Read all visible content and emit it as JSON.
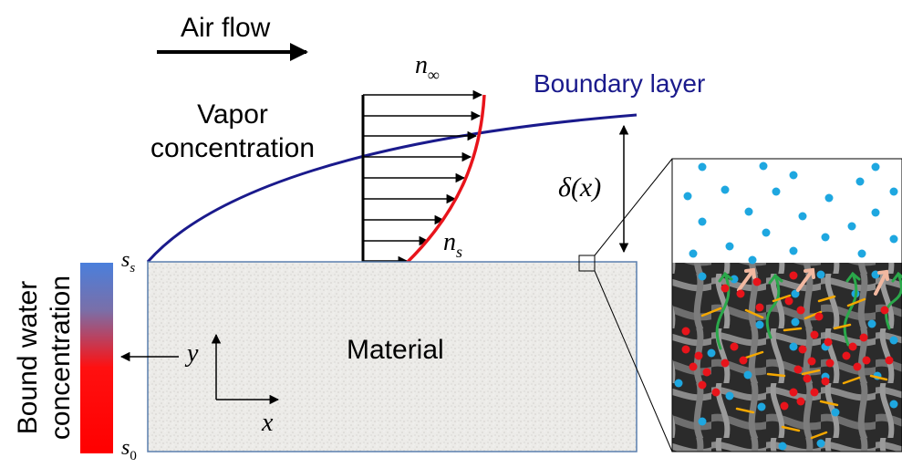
{
  "labels": {
    "air_flow": "Air flow",
    "vapor_line1": "Vapor",
    "vapor_line2": "concentration",
    "boundary_layer": "Boundary layer",
    "n_inf_base": "n",
    "n_inf_sub": "∞",
    "n_s_base": "n",
    "n_s_sub": "s",
    "delta": "δ(x)",
    "material": "Material",
    "y_axis": "y",
    "x_axis": "x",
    "bound_water_line1": "Bound water",
    "bound_water_line2": "concentration",
    "ss_base": "s",
    "ss_sub": "s",
    "s0_base": "s",
    "s0_sub": "0"
  },
  "colors": {
    "boundary_curve": "#1a1a8c",
    "profile_curve": "#e8141b",
    "vapor_dot": "#1ea7e0",
    "bound_dot": "#e8141b",
    "exchange_arrow": "#f5a800",
    "evaporation_arrow": "#2aa84a",
    "release_arrow": "#f2b8a0",
    "gradient_top": "#4a7fdc",
    "gradient_bottom": "#ff1010",
    "material_border": "#5a7fae"
  },
  "icons": [
    "air-flow-arrow-icon",
    "velocity-arrow-icon",
    "dimension-arrow-icon",
    "axis-arrow-icon"
  ]
}
